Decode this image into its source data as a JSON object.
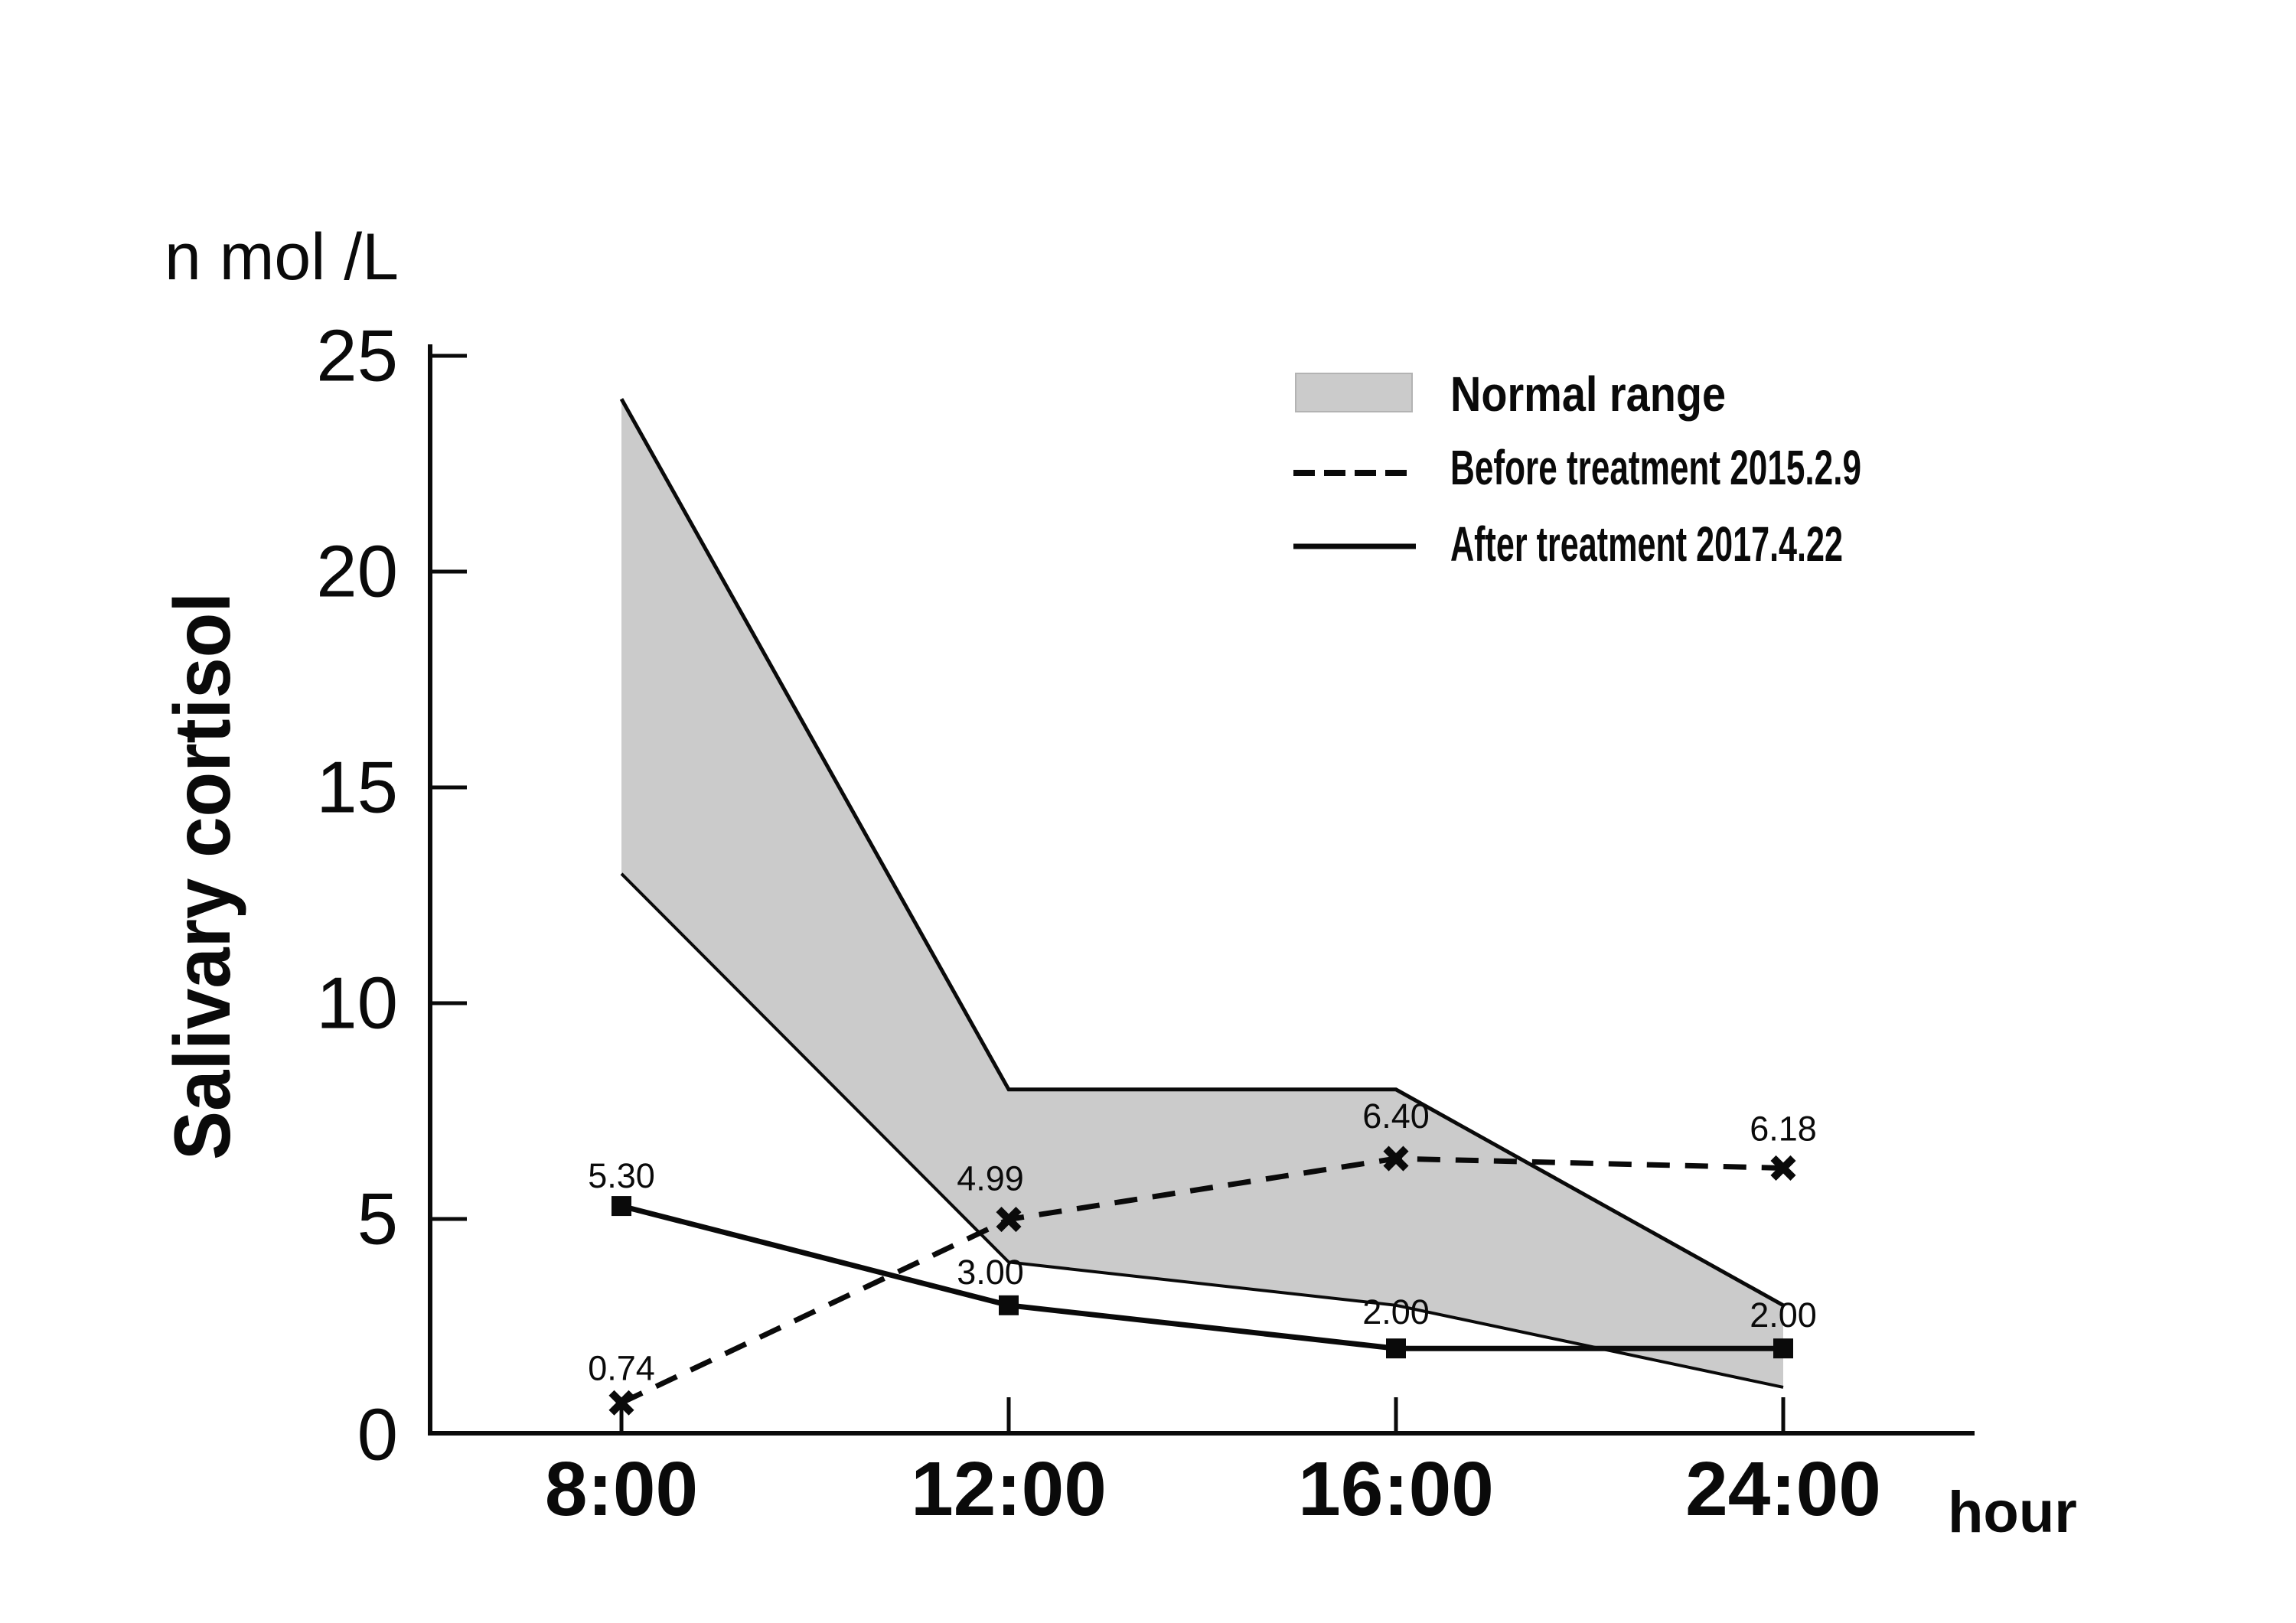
{
  "page": {
    "background": "#ffffff"
  },
  "chart_data": {
    "type": "line",
    "title": "",
    "unit_label": "n mol /L",
    "ylabel": "Salivary cortisol",
    "xlabel": "hour",
    "categories": [
      "8:00",
      "12:00",
      "16:00",
      "24:00"
    ],
    "y_ticks": [
      "0",
      "5",
      "10",
      "15",
      "20",
      "25"
    ],
    "ylim": [
      0,
      25
    ],
    "grid": false,
    "legend_position": "top-right",
    "normal_range": {
      "label": "Normal range",
      "upper": [
        24,
        8,
        8,
        3
      ],
      "lower": [
        13,
        4,
        3,
        1.1
      ]
    },
    "series": [
      {
        "name": "Before treatment 2015.2.9",
        "style": "dashed",
        "marker": "x",
        "values": [
          0.74,
          4.99,
          6.4,
          6.18
        ],
        "labels": [
          "0.74",
          "4.99",
          "6.40",
          "6.18"
        ]
      },
      {
        "name": "After treatment 2017.4.22",
        "style": "solid",
        "marker": "square",
        "values": [
          5.3,
          3.0,
          2.0,
          2.0
        ],
        "labels": [
          "5.30",
          "3.00",
          "2.00",
          "2.00"
        ]
      }
    ],
    "colors": {
      "band": "#cbcbcb",
      "line": "#0a0a0a",
      "background": "#ffffff"
    }
  }
}
